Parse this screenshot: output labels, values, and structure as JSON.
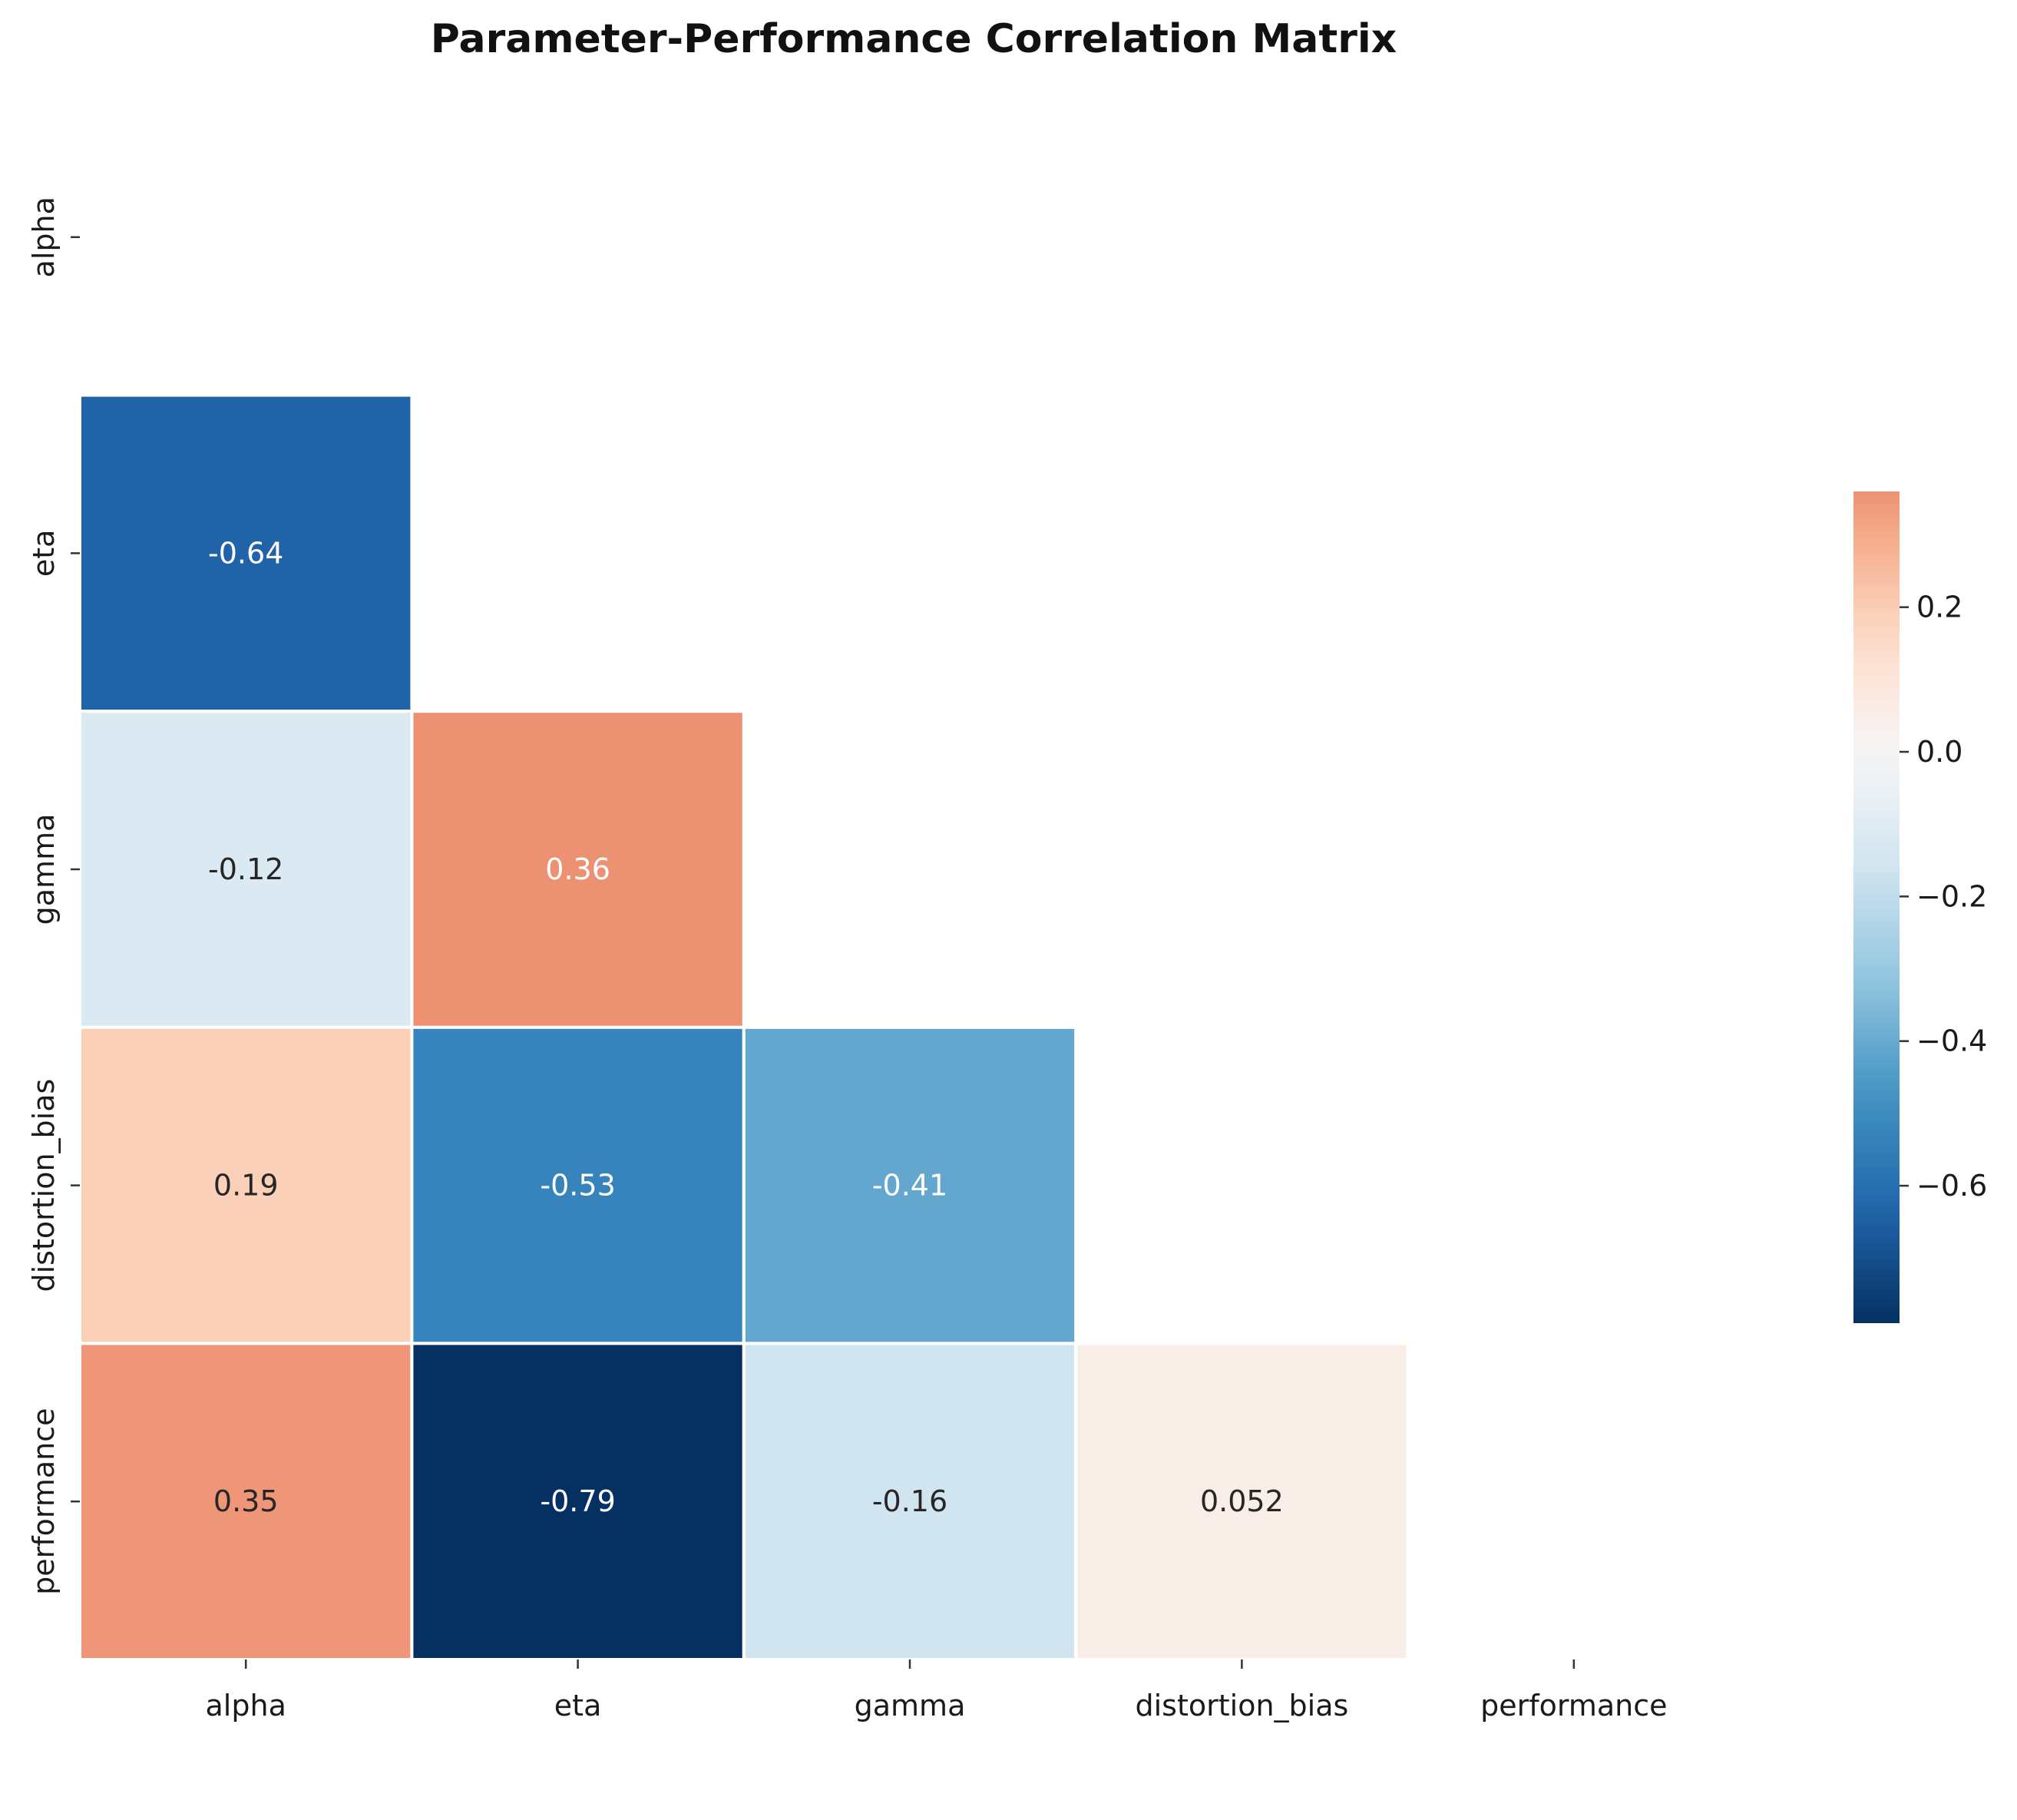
{
  "chart_data": {
    "type": "heatmap",
    "title": "Parameter-Performance Correlation Matrix",
    "xlabel": "",
    "ylabel": "",
    "variables": [
      "alpha",
      "eta",
      "gamma",
      "distortion_bias",
      "performance"
    ],
    "mask": "upper-triangle including diagonal",
    "cells": [
      {
        "row": "eta",
        "col": "alpha",
        "value": -0.64,
        "label": "-0.64"
      },
      {
        "row": "gamma",
        "col": "alpha",
        "value": -0.12,
        "label": "-0.12"
      },
      {
        "row": "gamma",
        "col": "eta",
        "value": 0.36,
        "label": "0.36"
      },
      {
        "row": "distortion_bias",
        "col": "alpha",
        "value": 0.19,
        "label": "0.19"
      },
      {
        "row": "distortion_bias",
        "col": "eta",
        "value": -0.53,
        "label": "-0.53"
      },
      {
        "row": "distortion_bias",
        "col": "gamma",
        "value": -0.41,
        "label": "-0.41"
      },
      {
        "row": "performance",
        "col": "alpha",
        "value": 0.35,
        "label": "0.35"
      },
      {
        "row": "performance",
        "col": "eta",
        "value": -0.79,
        "label": "-0.79"
      },
      {
        "row": "performance",
        "col": "gamma",
        "value": -0.16,
        "label": "-0.16"
      },
      {
        "row": "performance",
        "col": "distortion_bias",
        "value": 0.052,
        "label": "0.052"
      }
    ],
    "colorbar": {
      "colormap": "RdBu_r",
      "center": 0,
      "vmin": -0.79,
      "vmax": 0.36,
      "ticks": [
        0.2,
        0.0,
        -0.2,
        -0.4,
        -0.6
      ],
      "tick_labels": [
        "0.2",
        "0.0",
        "−0.2",
        "−0.4",
        "−0.6"
      ]
    },
    "grid": false,
    "cell_borders": "white"
  }
}
